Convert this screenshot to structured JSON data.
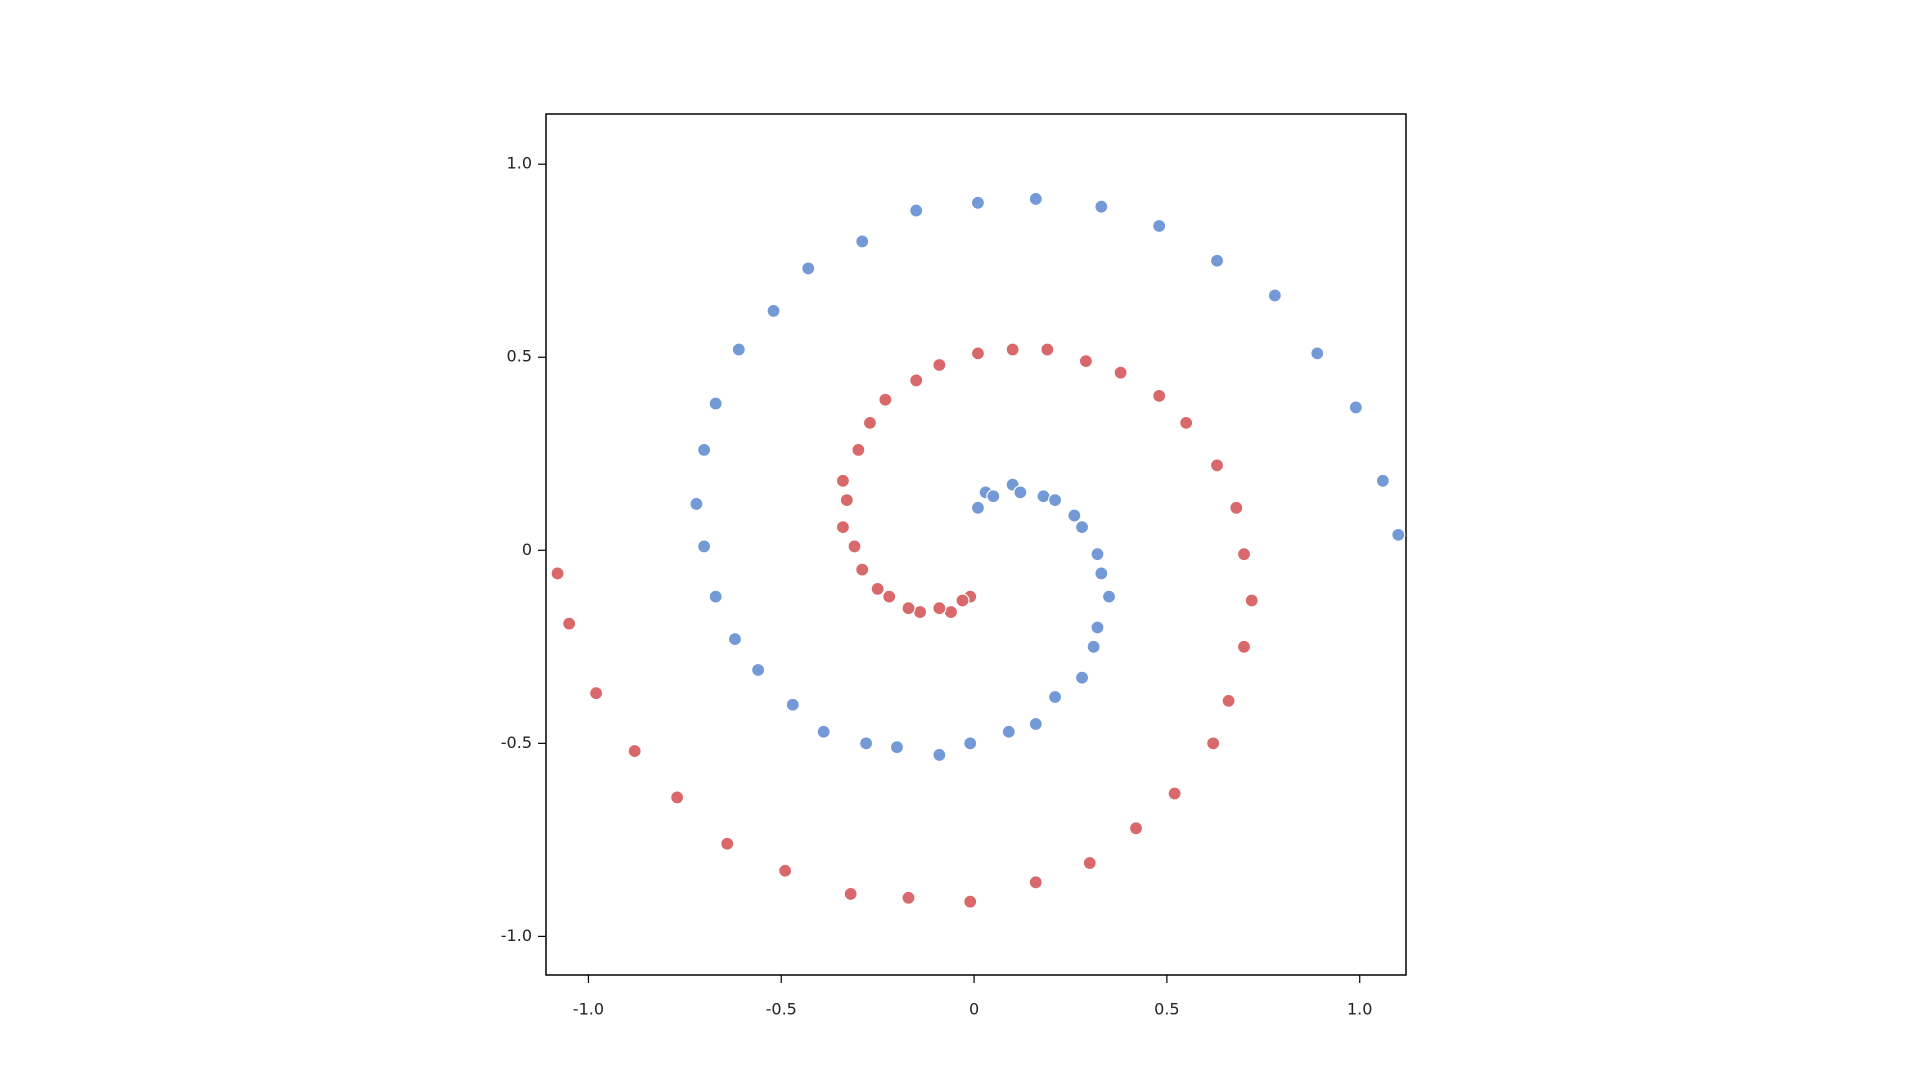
{
  "chart_data": {
    "type": "scatter",
    "xlim": [
      -1.11,
      1.12
    ],
    "ylim": [
      -1.1,
      1.13
    ],
    "xticks": [
      {
        "value": -1,
        "label": "-1.0"
      },
      -0.5,
      0,
      0.5,
      {
        "value": 1,
        "label": "1.0"
      }
    ],
    "yticks": [
      {
        "value": -1,
        "label": "-1.0"
      },
      -0.5,
      0,
      0.5,
      {
        "value": 1,
        "label": "1.0"
      }
    ],
    "grid": false,
    "series": [
      {
        "color": "#7399d6",
        "x": [
          0.01,
          0.03,
          0.05,
          0.1,
          0.12,
          0.18,
          0.21,
          0.26,
          0.28,
          0.32,
          0.33,
          0.35,
          0.32,
          0.31,
          0.28,
          0.21,
          0.16,
          0.09,
          -0.01,
          -0.09,
          -0.2,
          -0.28,
          -0.39,
          -0.47,
          -0.56,
          -0.62,
          -0.67,
          -0.7,
          -0.72,
          -0.7,
          -0.67,
          -0.61,
          -0.52,
          -0.43,
          -0.29,
          -0.15,
          0.01,
          0.16,
          0.33,
          0.48,
          0.63,
          0.78,
          0.89,
          0.99,
          1.06,
          1.1
        ],
        "values": [
          0.11,
          0.15,
          0.14,
          0.17,
          0.15,
          0.14,
          0.13,
          0.09,
          0.06,
          -0.01,
          -0.06,
          -0.12,
          -0.2,
          -0.25,
          -0.33,
          -0.38,
          -0.45,
          -0.47,
          -0.5,
          -0.53,
          -0.51,
          -0.5,
          -0.47,
          -0.4,
          -0.31,
          -0.23,
          -0.12,
          0.01,
          0.12,
          0.26,
          0.38,
          0.52,
          0.62,
          0.73,
          0.8,
          0.88,
          0.9,
          0.91,
          0.89,
          0.84,
          0.75,
          0.66,
          0.51,
          0.37,
          0.18,
          0.04
        ]
      },
      {
        "color": "#d9686a",
        "x": [
          -0.01,
          -0.03,
          -0.06,
          -0.09,
          -0.14,
          -0.17,
          -0.22,
          -0.25,
          -0.29,
          -0.31,
          -0.34,
          -0.33,
          -0.34,
          -0.3,
          -0.27,
          -0.23,
          -0.15,
          -0.09,
          0.01,
          0.1,
          0.19,
          0.29,
          0.38,
          0.48,
          0.55,
          0.63,
          0.68,
          0.7,
          0.72,
          0.7,
          0.66,
          0.62,
          0.52,
          0.42,
          0.3,
          0.16,
          -0.01,
          -0.17,
          -0.32,
          -0.49,
          -0.64,
          -0.77,
          -0.88,
          -0.98,
          -1.05,
          -1.08
        ],
        "values": [
          -0.12,
          -0.13,
          -0.16,
          -0.15,
          -0.16,
          -0.15,
          -0.12,
          -0.1,
          -0.05,
          0.01,
          0.06,
          0.13,
          0.18,
          0.26,
          0.33,
          0.39,
          0.44,
          0.48,
          0.51,
          0.52,
          0.52,
          0.49,
          0.46,
          0.4,
          0.33,
          0.22,
          0.11,
          -0.01,
          -0.13,
          -0.25,
          -0.39,
          -0.5,
          -0.63,
          -0.72,
          -0.81,
          -0.86,
          -0.91,
          -0.9,
          -0.89,
          -0.83,
          -0.76,
          -0.64,
          -0.52,
          -0.37,
          -0.19,
          -0.06
        ]
      }
    ]
  }
}
